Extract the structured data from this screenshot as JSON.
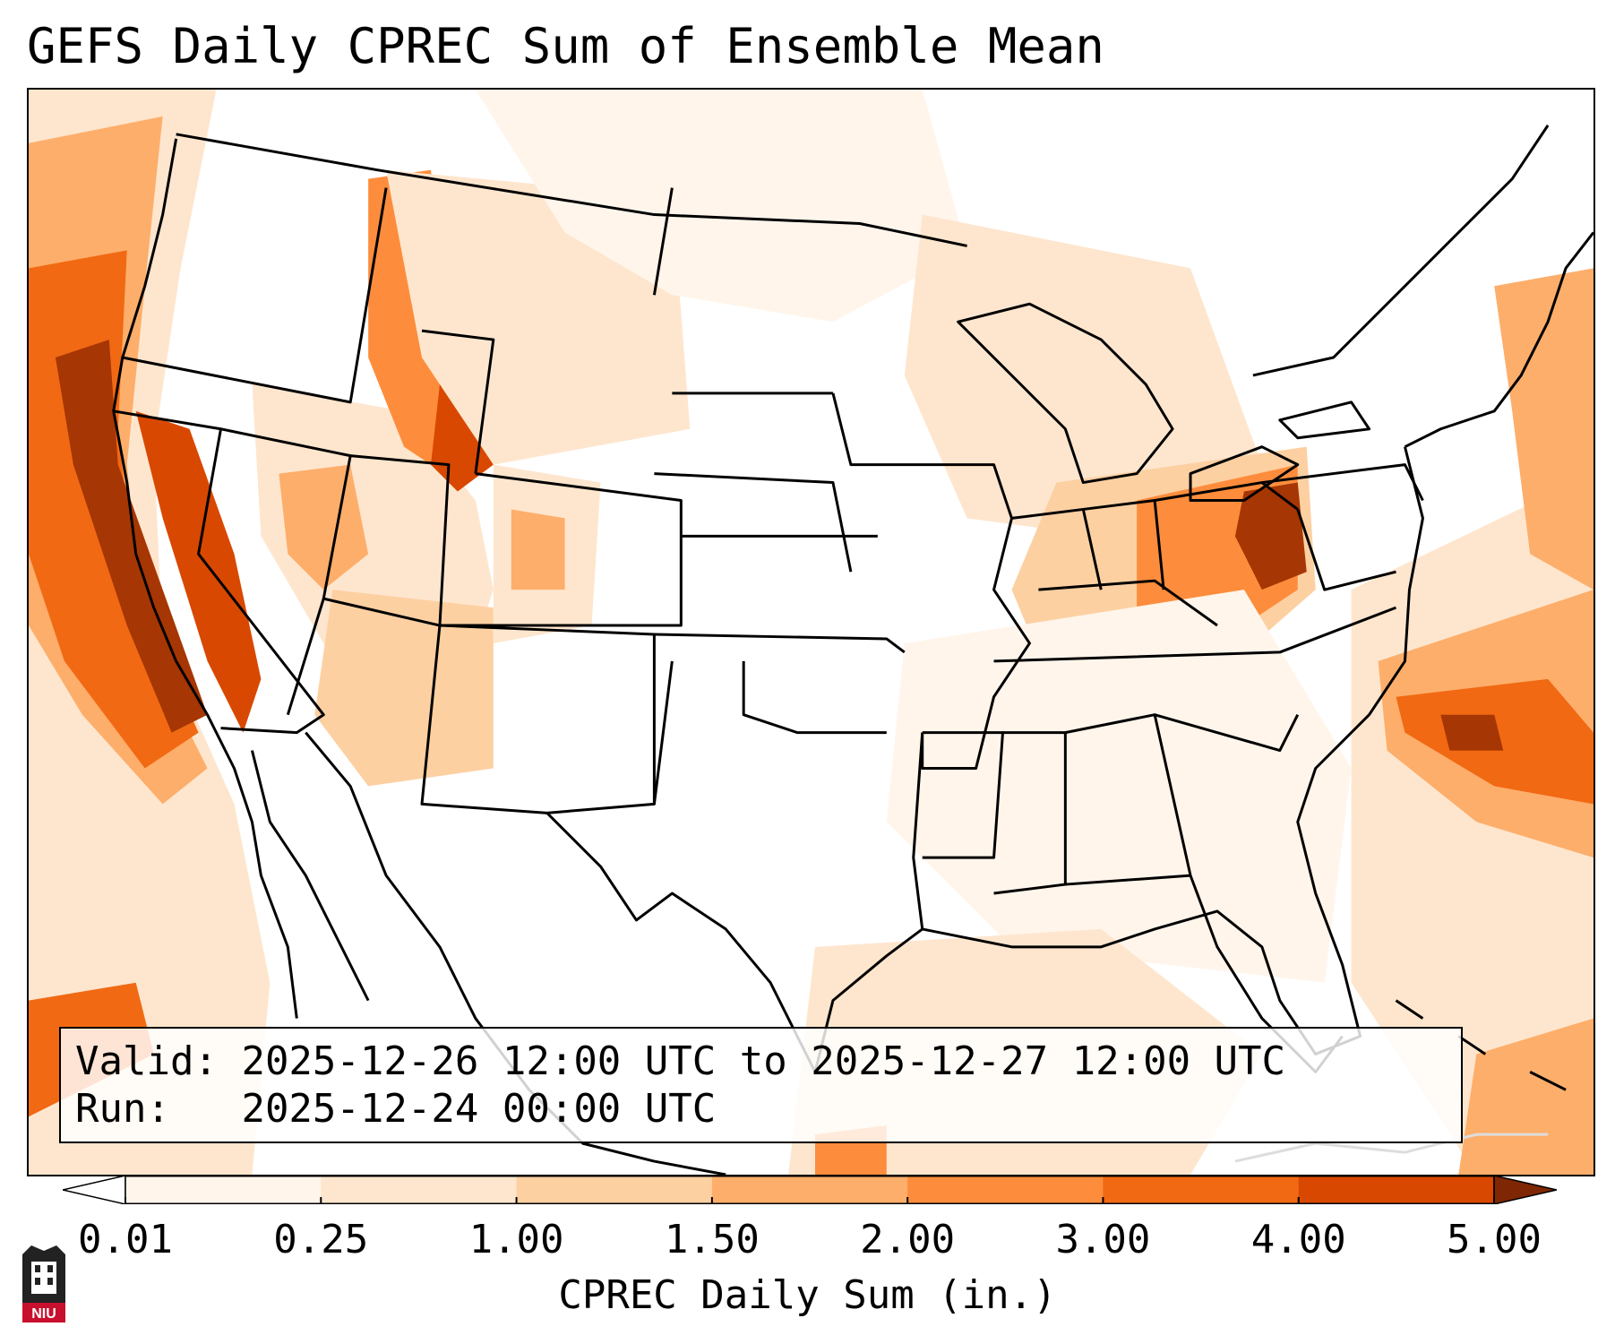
{
  "title": "GEFS Daily CPREC Sum of Ensemble Mean",
  "info": {
    "valid_label": "Valid:",
    "valid_value": "2025-12-26 12:00 UTC to 2025-12-27 12:00 UTC",
    "run_label": "Run:",
    "run_value": "2025-12-24 00:00 UTC"
  },
  "colorbar": {
    "label": "CPREC Daily Sum (in.)",
    "ticks": [
      "0.01",
      "0.25",
      "1.00",
      "1.50",
      "2.00",
      "3.00",
      "4.00",
      "5.00"
    ],
    "colors": [
      "#fff5eb",
      "#fee6ce",
      "#fdd0a2",
      "#fdae6b",
      "#fd8d3c",
      "#f16913",
      "#d94801",
      "#a63603",
      "#7f2704"
    ]
  },
  "logo": {
    "text": "NIU",
    "color": "#c8102e"
  }
}
